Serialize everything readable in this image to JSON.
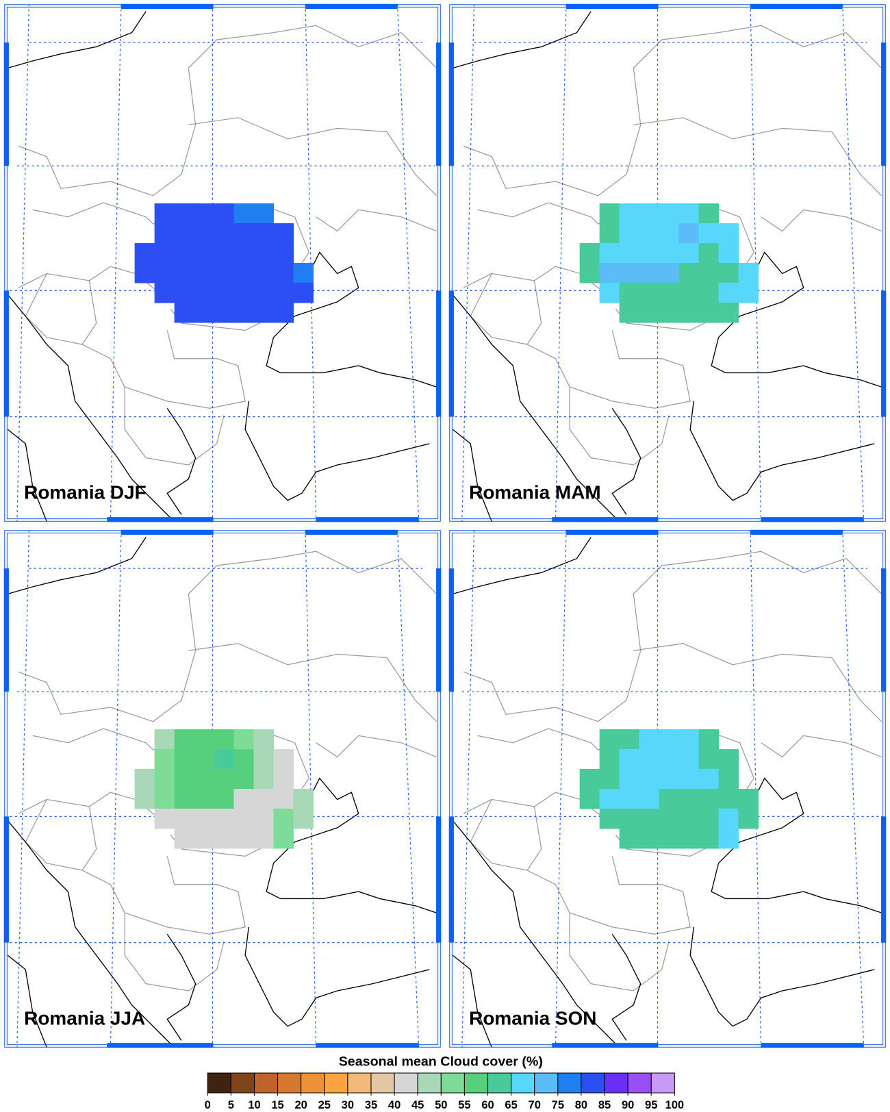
{
  "panels": [
    {
      "title": "Romania DJF",
      "cells": [
        [
          null,
          82,
          82,
          82,
          82,
          77,
          77,
          null,
          null
        ],
        [
          null,
          82,
          82,
          82,
          82,
          82,
          82,
          82,
          null
        ],
        [
          82,
          82,
          82,
          82,
          82,
          82,
          82,
          82,
          null
        ],
        [
          82,
          82,
          82,
          82,
          82,
          82,
          82,
          82,
          77
        ],
        [
          null,
          82,
          82,
          82,
          82,
          82,
          82,
          82,
          82
        ],
        [
          null,
          null,
          82,
          82,
          82,
          82,
          82,
          82,
          null
        ]
      ]
    },
    {
      "title": "Romania MAM",
      "cells": [
        [
          null,
          62,
          67,
          67,
          67,
          67,
          62,
          null,
          null
        ],
        [
          null,
          62,
          67,
          67,
          67,
          72,
          67,
          67,
          null
        ],
        [
          62,
          67,
          67,
          67,
          67,
          67,
          62,
          67,
          null
        ],
        [
          62,
          72,
          72,
          72,
          72,
          62,
          62,
          62,
          67
        ],
        [
          null,
          67,
          62,
          62,
          62,
          62,
          62,
          67,
          67
        ],
        [
          null,
          null,
          62,
          62,
          62,
          62,
          62,
          62,
          null
        ]
      ]
    },
    {
      "title": "Romania JJA",
      "cells": [
        [
          null,
          47,
          57,
          57,
          57,
          52,
          47,
          null,
          null
        ],
        [
          null,
          52,
          57,
          57,
          62,
          57,
          47,
          42,
          null
        ],
        [
          47,
          52,
          57,
          57,
          57,
          57,
          47,
          42,
          null
        ],
        [
          47,
          52,
          57,
          57,
          57,
          42,
          42,
          42,
          47
        ],
        [
          null,
          42,
          42,
          42,
          42,
          42,
          42,
          52,
          47
        ],
        [
          null,
          null,
          42,
          42,
          42,
          42,
          42,
          52,
          null
        ]
      ]
    },
    {
      "title": "Romania SON",
      "cells": [
        [
          null,
          62,
          62,
          67,
          67,
          67,
          62,
          null,
          null
        ],
        [
          null,
          62,
          67,
          67,
          67,
          67,
          62,
          62,
          null
        ],
        [
          62,
          62,
          67,
          67,
          67,
          67,
          67,
          62,
          null
        ],
        [
          62,
          67,
          67,
          67,
          62,
          62,
          62,
          62,
          62
        ],
        [
          null,
          62,
          62,
          62,
          62,
          62,
          62,
          67,
          62
        ],
        [
          null,
          null,
          62,
          62,
          62,
          62,
          62,
          67,
          null
        ]
      ]
    }
  ],
  "colorbar": {
    "title": "Seasonal mean Cloud cover (%)",
    "ticks": [
      0,
      5,
      10,
      15,
      20,
      25,
      30,
      35,
      40,
      45,
      50,
      55,
      60,
      65,
      70,
      75,
      80,
      85,
      90,
      95,
      100
    ],
    "colors": [
      "#3e2410",
      "#7f4419",
      "#c0622a",
      "#d8782f",
      "#ee9035",
      "#fba440",
      "#f3b978",
      "#e3c6a3",
      "#d6d6d6",
      "#a8d8b7",
      "#7edc98",
      "#56d07c",
      "#48ca9a",
      "#57d8fa",
      "#5bbcf7",
      "#1f7ef2",
      "#2b4ef5",
      "#6a2ff5",
      "#9b4ef5",
      "#c99af7"
    ]
  }
}
